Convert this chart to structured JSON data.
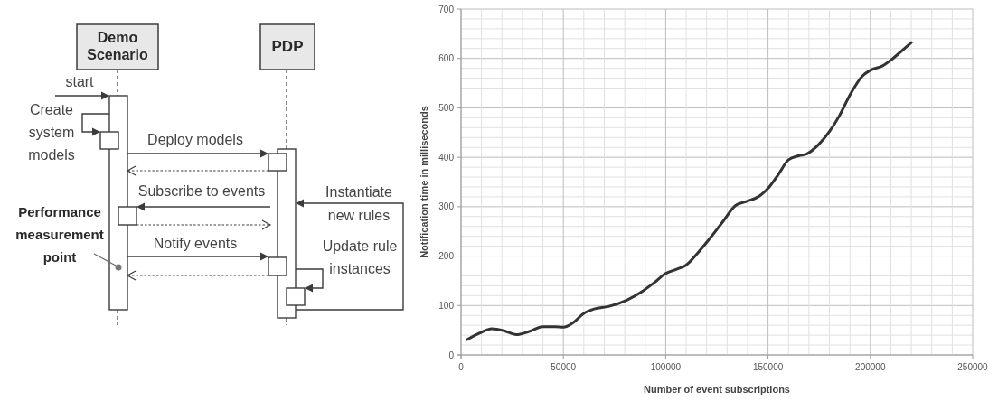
{
  "chart_data": [
    {
      "type": "other",
      "annotations": [
        "Demo Scenario",
        "PDP",
        "start",
        "Create system models",
        "Deploy models",
        "Subscribe to events",
        "Performance measurement point",
        "Notify events",
        "Instantiate new rules",
        "Update rule instances"
      ]
    },
    {
      "type": "line",
      "xlabel": "Number of event subscriptions",
      "ylabel": "Notification time in milliseconds",
      "x": [
        3000,
        9000,
        15000,
        21000,
        27000,
        33000,
        40000,
        46000,
        50000,
        55000,
        60000,
        65000,
        72000,
        81000,
        88000,
        94000,
        100000,
        105000,
        110000,
        116000,
        122000,
        128000,
        134000,
        139000,
        146000,
        150000,
        155000,
        160000,
        165000,
        169000,
        175000,
        180000,
        185000,
        190000,
        196000,
        200000,
        206000,
        211000,
        215000,
        220000
      ],
      "series": [
        {
          "color": "#333333",
          "values": [
            31,
            44,
            53,
            49,
            41,
            47,
            57,
            57,
            56,
            66,
            84,
            93,
            98,
            111,
            127,
            145,
            165,
            173,
            182,
            208,
            238,
            270,
            302,
            310,
            322,
            337,
            365,
            395,
            403,
            407,
            427,
            452,
            485,
            526,
            564,
            576,
            585,
            600,
            614,
            632
          ]
        }
      ],
      "xlim": [
        0,
        250000
      ],
      "ylim": [
        0,
        700
      ],
      "xticks": [
        0,
        {
          "value": 10000,
          "label": null
        },
        {
          "value": 20000,
          "label": null
        },
        {
          "value": 30000,
          "label": null
        },
        {
          "value": 40000,
          "label": null
        },
        50000,
        {
          "value": 60000,
          "label": null
        },
        {
          "value": 70000,
          "label": null
        },
        {
          "value": 80000,
          "label": null
        },
        {
          "value": 90000,
          "label": null
        },
        100000,
        {
          "value": 110000,
          "label": null
        },
        {
          "value": 120000,
          "label": null
        },
        {
          "value": 130000,
          "label": null
        },
        {
          "value": 140000,
          "label": null
        },
        150000,
        {
          "value": 160000,
          "label": null
        },
        {
          "value": 170000,
          "label": null
        },
        {
          "value": 180000,
          "label": null
        },
        {
          "value": 190000,
          "label": null
        },
        200000,
        {
          "value": 210000,
          "label": null
        },
        {
          "value": 220000,
          "label": null
        },
        {
          "value": 230000,
          "label": null
        },
        {
          "value": 240000,
          "label": null
        },
        250000
      ],
      "yticks": [
        0,
        {
          "value": 20,
          "label": null
        },
        {
          "value": 40,
          "label": null
        },
        {
          "value": 60,
          "label": null
        },
        {
          "value": 80,
          "label": null
        },
        100,
        {
          "value": 120,
          "label": null
        },
        {
          "value": 140,
          "label": null
        },
        {
          "value": 160,
          "label": null
        },
        {
          "value": 180,
          "label": null
        },
        200,
        {
          "value": 220,
          "label": null
        },
        {
          "value": 240,
          "label": null
        },
        {
          "value": 260,
          "label": null
        },
        {
          "value": 280,
          "label": null
        },
        300,
        {
          "value": 320,
          "label": null
        },
        {
          "value": 340,
          "label": null
        },
        {
          "value": 360,
          "label": null
        },
        {
          "value": 380,
          "label": null
        },
        400,
        {
          "value": 420,
          "label": null
        },
        {
          "value": 440,
          "label": null
        },
        {
          "value": 460,
          "label": null
        },
        {
          "value": 480,
          "label": null
        },
        500,
        {
          "value": 520,
          "label": null
        },
        {
          "value": 540,
          "label": null
        },
        {
          "value": 560,
          "label": null
        },
        {
          "value": 580,
          "label": null
        },
        600,
        {
          "value": 620,
          "label": null
        },
        {
          "value": 640,
          "label": null
        },
        {
          "value": 660,
          "label": null
        },
        {
          "value": 680,
          "label": null
        },
        700
      ],
      "grid": true
    }
  ]
}
